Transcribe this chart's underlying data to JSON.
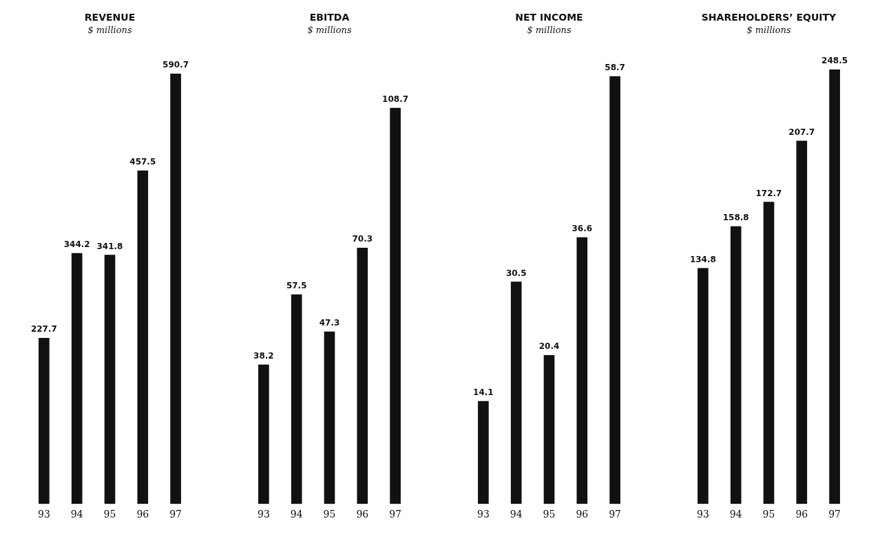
{
  "chart_data": [
    {
      "type": "bar",
      "title": "REVENUE",
      "subtitle": "$ millions",
      "categories": [
        "93",
        "94",
        "95",
        "96",
        "97"
      ],
      "values": [
        227.7,
        344.2,
        341.8,
        457.5,
        590.7
      ],
      "color": "#111111",
      "data_labels": true,
      "grid": false,
      "legend": false,
      "tick_labels": "x"
    },
    {
      "type": "bar",
      "title": "EBITDA",
      "subtitle": "$ millions",
      "categories": [
        "93",
        "94",
        "95",
        "96",
        "97"
      ],
      "values": [
        38.2,
        57.5,
        47.3,
        70.3,
        108.7
      ],
      "color": "#111111",
      "data_labels": true,
      "grid": false,
      "legend": false,
      "tick_labels": "x"
    },
    {
      "type": "bar",
      "title": "NET INCOME",
      "subtitle": "$ millions",
      "categories": [
        "93",
        "94",
        "95",
        "96",
        "97"
      ],
      "values": [
        14.1,
        30.5,
        20.4,
        36.6,
        58.7
      ],
      "color": "#111111",
      "data_labels": true,
      "grid": false,
      "legend": false,
      "tick_labels": "x"
    },
    {
      "type": "bar",
      "title": "SHAREHOLDERS’ EQUITY",
      "subtitle": "$ millions",
      "categories": [
        "93",
        "94",
        "95",
        "96",
        "97"
      ],
      "values": [
        134.8,
        158.8,
        172.7,
        207.7,
        248.5
      ],
      "color": "#111111",
      "data_labels": true,
      "grid": false,
      "legend": false,
      "tick_labels": "x"
    }
  ]
}
